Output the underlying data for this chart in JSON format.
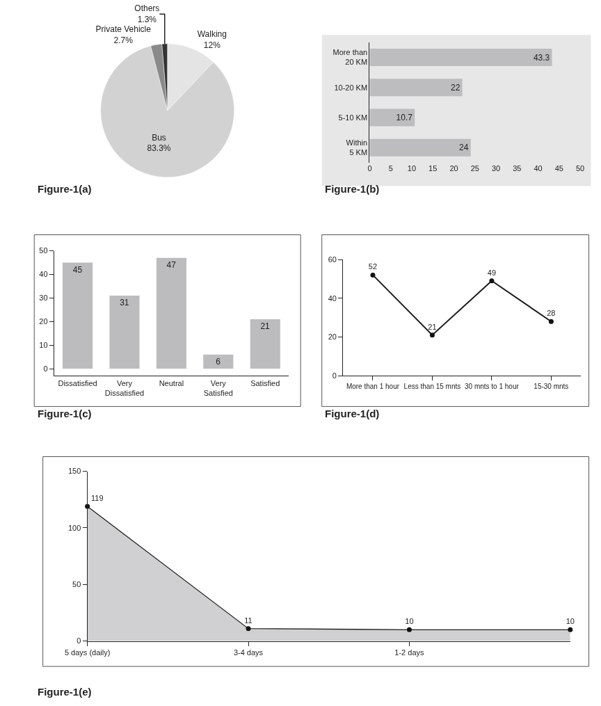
{
  "chart_data": [
    {
      "type": "pie",
      "title": "Figure-1(a)",
      "categories": [
        "Walking",
        "Bus",
        "Private Vehicle",
        "Others"
      ],
      "values": [
        12,
        83.3,
        2.7,
        1.3
      ],
      "value_labels": [
        "12%",
        "83.3%",
        "2.7%",
        "1.3%"
      ],
      "colors": [
        "#e4e4e4",
        "#d2d2d2",
        "#8a8a8a",
        "#333333"
      ]
    },
    {
      "type": "bar",
      "orientation": "horizontal",
      "title": "Figure-1(b)",
      "categories": [
        "More than\n20 KM",
        "10-20 KM",
        "5-10 KM",
        "Within\n5 KM"
      ],
      "values": [
        43.3,
        22,
        10.7,
        24
      ],
      "color": "#bdbdbf",
      "data_labels": true,
      "xlim": [
        0,
        50
      ],
      "xticks": [
        0,
        5,
        10,
        15,
        20,
        25,
        30,
        35,
        40,
        45,
        50
      ],
      "grid": false
    },
    {
      "type": "bar",
      "title": "Figure-1(c)",
      "categories": [
        "Dissatisfied",
        "Very\nDissatisfied",
        "Neutral",
        "Very\nSatisfied",
        "Satisfied"
      ],
      "values": [
        45,
        31,
        47,
        6,
        21
      ],
      "color": "#bcbcbe",
      "data_labels": true,
      "ylim": [
        -3,
        50
      ],
      "yticks": [
        0,
        10,
        20,
        30,
        40,
        50
      ],
      "grid": false
    },
    {
      "type": "line",
      "title": "Figure-1(d)",
      "categories": [
        "More than 1 hour",
        "Less than 15 mnts",
        "30 mnts to 1 hour",
        "15-30 mnts"
      ],
      "values": [
        52,
        21,
        49,
        28
      ],
      "color": "#1a1a1a",
      "marker": "circle",
      "line_style": "solid",
      "data_labels": true,
      "ylim": [
        0,
        60
      ],
      "yticks": [
        0,
        20,
        40,
        60
      ],
      "grid": false
    },
    {
      "type": "area",
      "title": "Figure-1(e)",
      "categories": [
        "5 days (daily)",
        "3-4 days",
        "1-2 days",
        null
      ],
      "values": [
        119,
        11,
        10,
        10
      ],
      "color": "#d0d0d2",
      "marker": "circle",
      "data_labels": true,
      "ylim": [
        0,
        150
      ],
      "yticks": [
        0,
        50,
        100,
        150
      ],
      "grid": false
    }
  ]
}
